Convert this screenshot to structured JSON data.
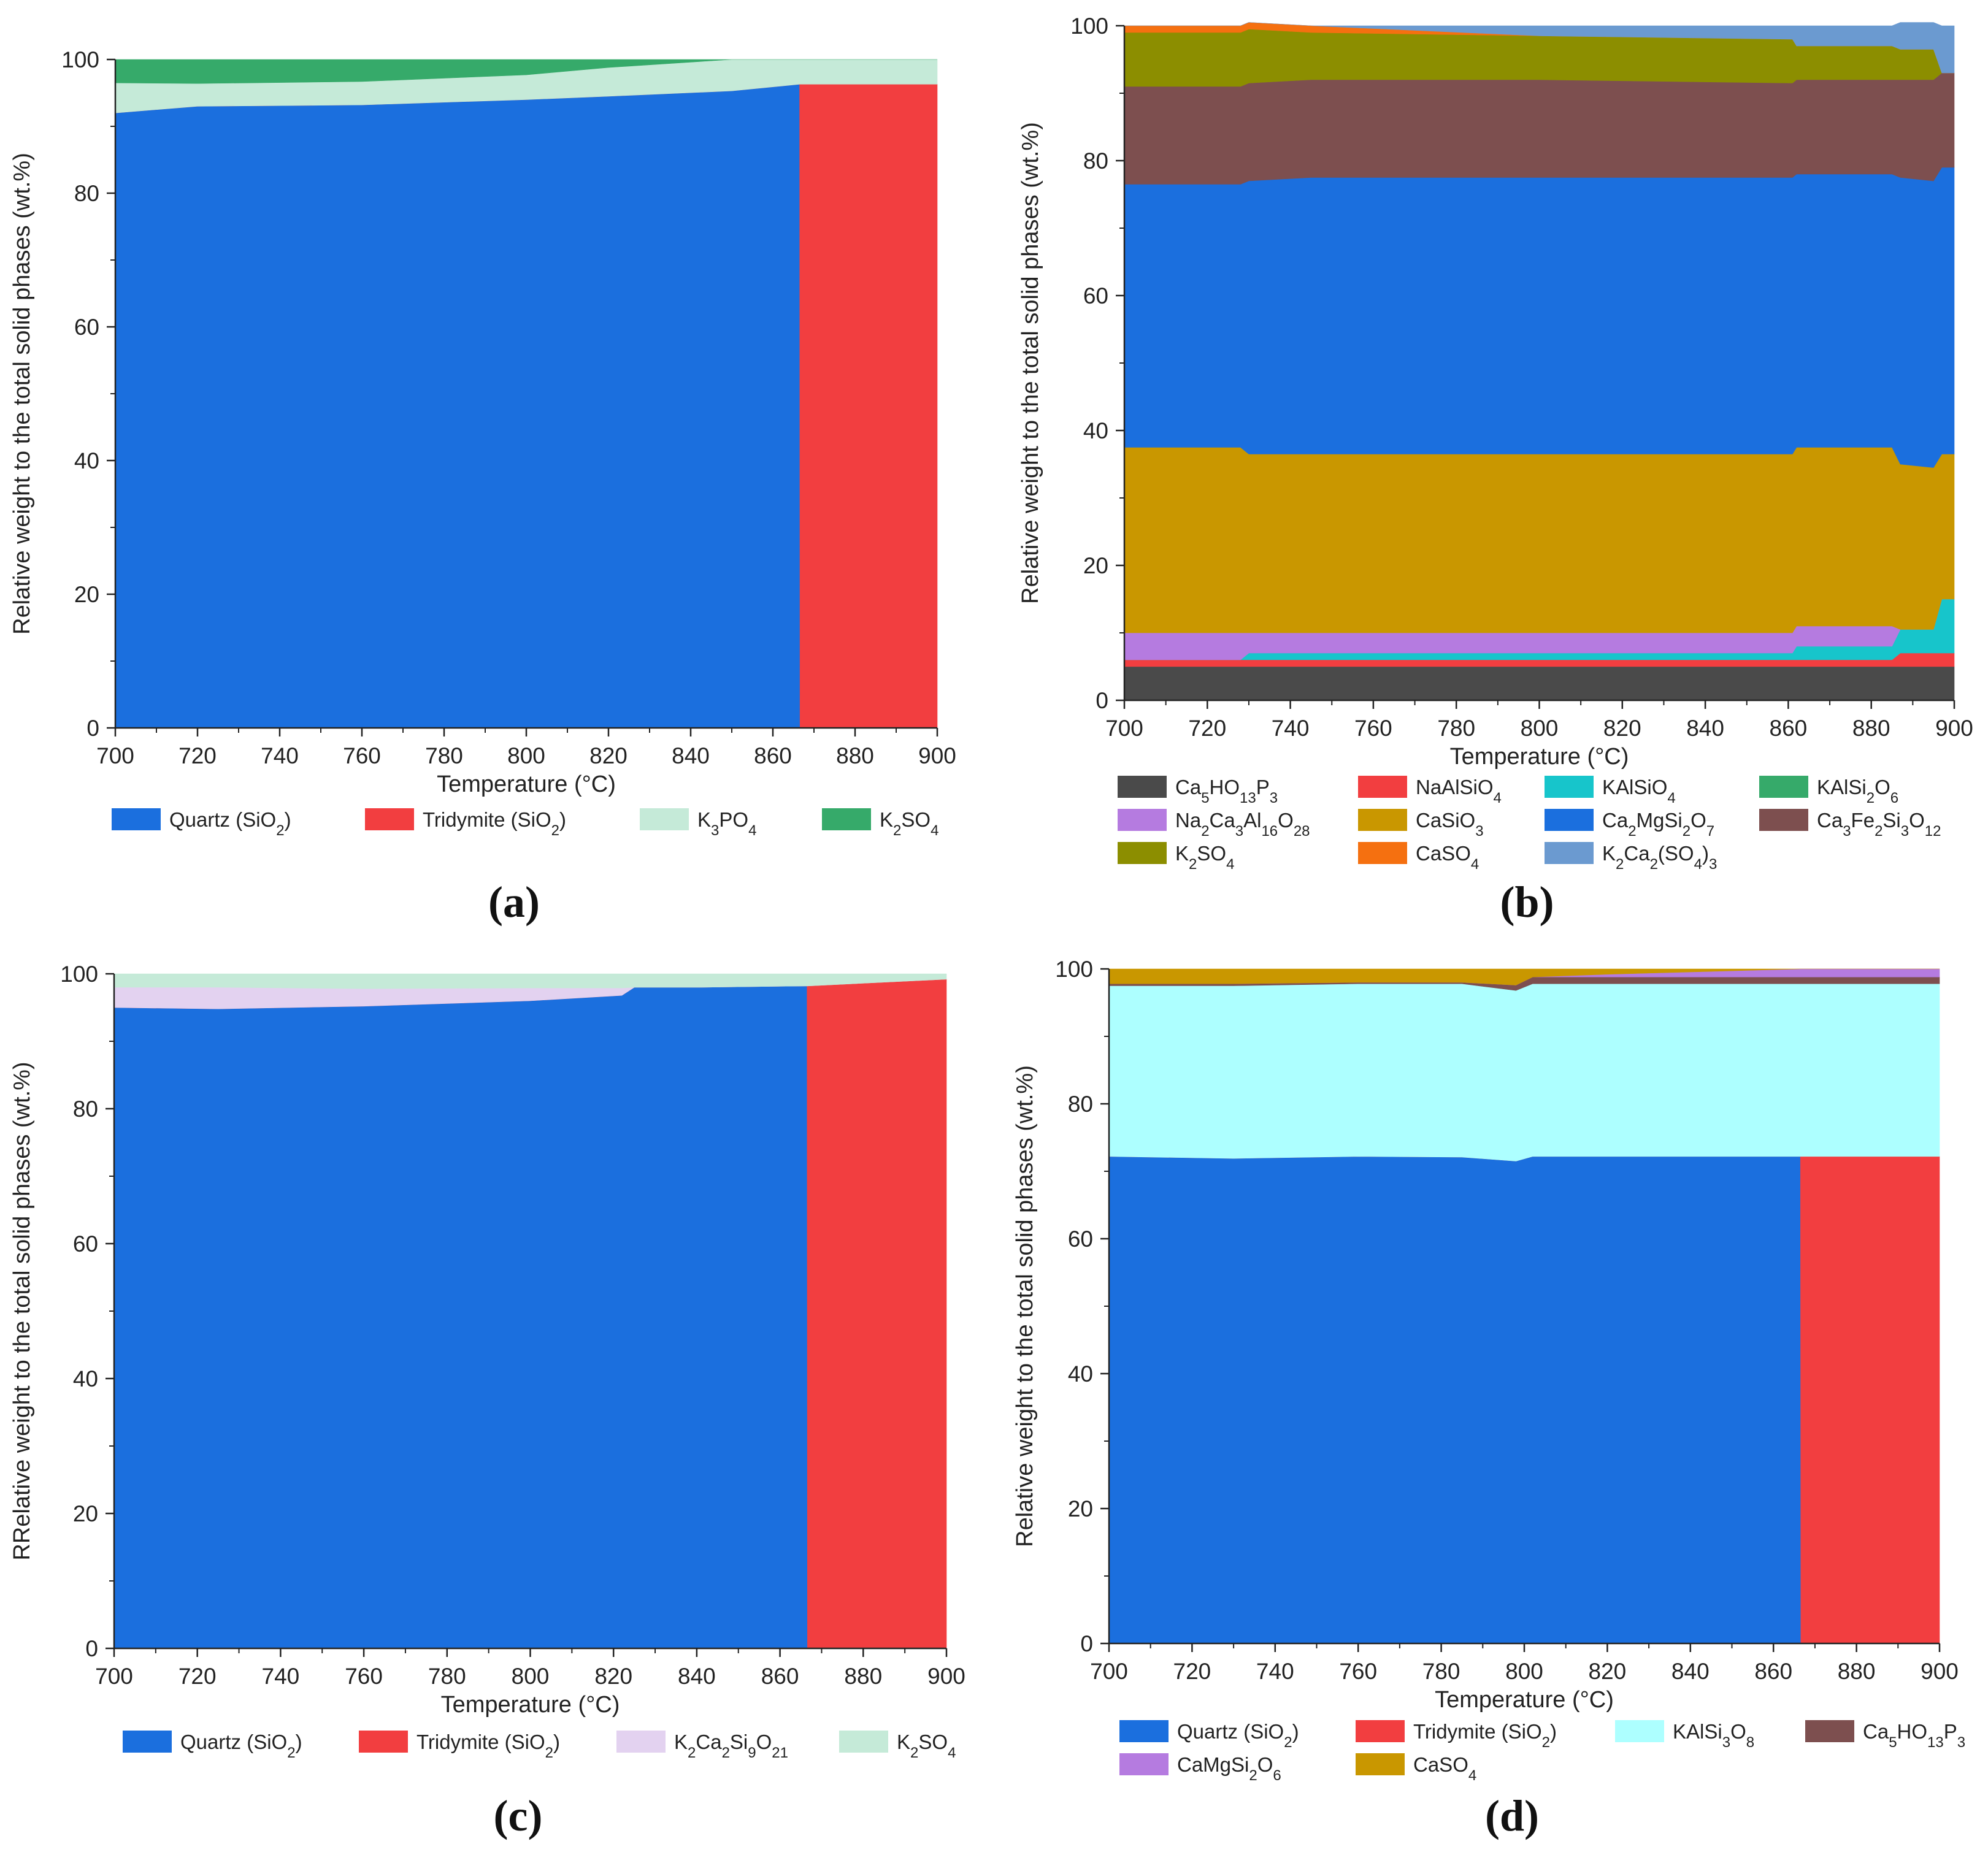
{
  "chart_data": [
    {
      "type": "area",
      "panel_label": "(a)",
      "xlabel": "Temperature (°C)",
      "ylabel": "Relative weight to the total solid phases (wt.%)",
      "xlim": [
        700,
        900
      ],
      "ylim": [
        0,
        100
      ],
      "x_ticks": [
        "700",
        "720",
        "740",
        "760",
        "780",
        "800",
        "820",
        "840",
        "860",
        "880",
        "900"
      ],
      "y_ticks": [
        "0",
        "20",
        "40",
        "60",
        "80",
        "100"
      ],
      "x": [
        700,
        720,
        760,
        800,
        820,
        850,
        866.5,
        866.6,
        900
      ],
      "series": [
        {
          "name": "Quartz (SiO2)",
          "legend_html": "Quartz (SiO<tspan baseline-shift='sub' font-size='24'>2</tspan>)",
          "color": "#1B6FDE",
          "values": [
            92,
            93,
            93.2,
            94,
            94.5,
            95.3,
            96.3,
            0,
            0
          ]
        },
        {
          "name": "Tridymite (SiO2)",
          "legend_html": "Tridymite (SiO<tspan baseline-shift='sub' font-size='24'>2</tspan>)",
          "color": "#F23E40",
          "values": [
            0,
            0,
            0,
            0,
            0,
            0,
            0,
            96.3,
            96.3
          ]
        },
        {
          "name": "K3PO4",
          "legend_html": "K<tspan baseline-shift='sub' font-size='24'>3</tspan>PO<tspan baseline-shift='sub' font-size='24'>4</tspan>",
          "color": "#C5EAD8",
          "values": [
            4.5,
            3.4,
            3.5,
            3.7,
            4.3,
            4.7,
            3.7,
            3.7,
            3.7
          ]
        },
        {
          "name": "K2SO4",
          "legend_html": "K<tspan baseline-shift='sub' font-size='24'>2</tspan>SO<tspan baseline-shift='sub' font-size='24'>4</tspan>",
          "color": "#36AA6A",
          "values": [
            3.5,
            3.6,
            3.3,
            2.3,
            1.2,
            0,
            0,
            0,
            0
          ]
        }
      ]
    },
    {
      "type": "area",
      "panel_label": "(b)",
      "xlabel": "Temperature (°C)",
      "ylabel": "Relative weight to the total solid phases (wt.%)",
      "xlim": [
        700,
        900
      ],
      "ylim": [
        0,
        100
      ],
      "x_ticks": [
        "700",
        "720",
        "740",
        "760",
        "780",
        "800",
        "820",
        "840",
        "860",
        "880",
        "900"
      ],
      "y_ticks": [
        "0",
        "20",
        "40",
        "60",
        "80",
        "100"
      ],
      "x": [
        700,
        728,
        730,
        745,
        800,
        861,
        862,
        885,
        887,
        895,
        897,
        900
      ],
      "series": [
        {
          "name": "Ca5HO13P3",
          "legend_html": "Ca<tspan baseline-shift='sub' font-size='24'>5</tspan>HO<tspan baseline-shift='sub' font-size='24'>13</tspan>P<tspan baseline-shift='sub' font-size='24'>3</tspan>",
          "color": "#4A4A4A",
          "values": [
            5,
            5,
            5,
            5,
            5,
            5,
            5,
            5,
            5,
            5,
            5,
            5
          ]
        },
        {
          "name": "NaAlSiO4",
          "legend_html": "NaAlSiO<tspan baseline-shift='sub' font-size='24'>4</tspan>",
          "color": "#F23E40",
          "values": [
            1,
            1,
            1,
            1,
            1,
            1,
            1,
            1,
            2,
            2,
            2,
            2
          ]
        },
        {
          "name": "KAlSiO4",
          "legend_html": "KAlSiO<tspan baseline-shift='sub' font-size='24'>4</tspan>",
          "color": "#17C5CB",
          "values": [
            0,
            0,
            1,
            1,
            1,
            1,
            2,
            2,
            3.5,
            3.5,
            8,
            8
          ]
        },
        {
          "name": "KAlSi2O6",
          "legend_html": "KAlSi<tspan baseline-shift='sub' font-size='24'>2</tspan>O<tspan baseline-shift='sub' font-size='24'>6</tspan>",
          "color": "#36AA6A",
          "values": [
            0,
            0,
            0,
            0,
            0,
            0,
            0,
            0,
            0,
            0,
            0,
            0
          ]
        },
        {
          "name": "Na2Ca3Al16O28",
          "legend_html": "Na<tspan baseline-shift='sub' font-size='24'>2</tspan>Ca<tspan baseline-shift='sub' font-size='24'>3</tspan>Al<tspan baseline-shift='sub' font-size='24'>16</tspan>O<tspan baseline-shift='sub' font-size='24'>28</tspan>",
          "color": "#B57BE0",
          "values": [
            4,
            4,
            3,
            3,
            3,
            3,
            3,
            3,
            0,
            0,
            0,
            0
          ]
        },
        {
          "name": "CaSiO3",
          "legend_html": "CaSiO<tspan baseline-shift='sub' font-size='24'>3</tspan>",
          "color": "#C99700",
          "values": [
            27.5,
            27.5,
            26.5,
            26.5,
            26.5,
            26.5,
            26.5,
            26.5,
            24.5,
            24,
            21.5,
            21.5
          ]
        },
        {
          "name": "Ca2MgSi2O7",
          "legend_html": "Ca<tspan baseline-shift='sub' font-size='24'>2</tspan>MgSi<tspan baseline-shift='sub' font-size='24'>2</tspan>O<tspan baseline-shift='sub' font-size='24'>7</tspan>",
          "color": "#1B6FDE",
          "values": [
            39,
            39,
            40.5,
            41,
            41,
            41,
            40.5,
            40.5,
            42.5,
            42.5,
            42.5,
            42.5
          ]
        },
        {
          "name": "Ca3Fe2Si3O12",
          "legend_html": "Ca<tspan baseline-shift='sub' font-size='24'>3</tspan>Fe<tspan baseline-shift='sub' font-size='24'>2</tspan>Si<tspan baseline-shift='sub' font-size='24'>3</tspan>O<tspan baseline-shift='sub' font-size='24'>12</tspan>",
          "color": "#7D4F4F",
          "values": [
            14.5,
            14.5,
            14.5,
            14.5,
            14.5,
            14,
            14,
            14,
            14.5,
            15,
            14,
            14
          ]
        },
        {
          "name": "K2SO4",
          "legend_html": "K<tspan baseline-shift='sub' font-size='24'>2</tspan>SO<tspan baseline-shift='sub' font-size='24'>4</tspan>",
          "color": "#8C8E00",
          "values": [
            8,
            8,
            8,
            7,
            6.5,
            6.5,
            5,
            5,
            4.5,
            4.5,
            0,
            0
          ]
        },
        {
          "name": "CaSO4",
          "legend_html": "CaSO<tspan baseline-shift='sub' font-size='24'>4</tspan>",
          "color": "#F57010",
          "values": [
            1,
            1,
            1,
            1,
            0,
            0,
            0,
            0,
            0,
            0,
            0,
            0
          ]
        },
        {
          "name": "K2Ca2(SO4)3",
          "legend_html": "K<tspan baseline-shift='sub' font-size='24'>2</tspan>Ca<tspan baseline-shift='sub' font-size='24'>2</tspan>(SO<tspan baseline-shift='sub' font-size='24'>4</tspan>)<tspan baseline-shift='sub' font-size='24'>3</tspan>",
          "color": "#6B9AD0",
          "values": [
            0,
            0,
            0,
            0,
            1.5,
            2,
            3,
            3,
            4,
            4,
            7,
            7
          ]
        }
      ]
    },
    {
      "type": "area",
      "panel_label": "(c)",
      "xlabel": "Temperature (°C)",
      "ylabel": "RRelative weight to the total solid phases (wt.%)",
      "xlim": [
        700,
        900
      ],
      "ylim": [
        0,
        100
      ],
      "x_ticks": [
        "700",
        "720",
        "740",
        "760",
        "780",
        "800",
        "820",
        "840",
        "860",
        "880",
        "900"
      ],
      "y_ticks": [
        "0",
        "20",
        "40",
        "60",
        "80",
        "100"
      ],
      "x": [
        700,
        725,
        760,
        800,
        822,
        825,
        840,
        866.5,
        866.6,
        900
      ],
      "series": [
        {
          "name": "Quartz (SiO2)",
          "legend_html": "Quartz (SiO<tspan baseline-shift='sub' font-size='24'>2</tspan>)",
          "color": "#1B6FDE",
          "values": [
            95,
            94.8,
            95.2,
            96,
            96.8,
            98,
            98,
            98.2,
            0,
            0
          ]
        },
        {
          "name": "Tridymite (SiO2)",
          "legend_html": "Tridymite (SiO<tspan baseline-shift='sub' font-size='24'>2</tspan>)",
          "color": "#F23E40",
          "values": [
            0,
            0,
            0,
            0,
            0,
            0,
            0,
            0,
            98.2,
            99.2
          ]
        },
        {
          "name": "K2Ca2Si9O21",
          "legend_html": "K<tspan baseline-shift='sub' font-size='24'>2</tspan>Ca<tspan baseline-shift='sub' font-size='24'>2</tspan>Si<tspan baseline-shift='sub' font-size='24'>9</tspan>O<tspan baseline-shift='sub' font-size='24'>21</tspan>",
          "color": "#E3D2F0",
          "values": [
            3,
            3.2,
            2.6,
            1.9,
            1.1,
            0,
            0,
            0,
            0,
            0
          ]
        },
        {
          "name": "K2SO4",
          "legend_html": "K<tspan baseline-shift='sub' font-size='24'>2</tspan>SO<tspan baseline-shift='sub' font-size='24'>4</tspan>",
          "color": "#C5EAD8",
          "values": [
            2,
            2,
            2.2,
            2.1,
            2.1,
            2,
            2,
            1.8,
            1.8,
            0.8
          ]
        }
      ]
    },
    {
      "type": "area",
      "panel_label": "(d)",
      "xlabel": "Temperature (°C)",
      "ylabel": "Relative weight to the total solid phases (wt.%)",
      "xlim": [
        700,
        900
      ],
      "ylim": [
        0,
        100
      ],
      "x_ticks": [
        "700",
        "720",
        "740",
        "760",
        "780",
        "800",
        "820",
        "840",
        "860",
        "880",
        "900"
      ],
      "y_ticks": [
        "0",
        "20",
        "40",
        "60",
        "80",
        "100"
      ],
      "x": [
        700,
        730,
        760,
        785,
        798,
        802,
        820,
        866.5,
        866.6,
        900
      ],
      "series": [
        {
          "name": "Quartz (SiO2)",
          "legend_html": "Quartz (SiO<tspan baseline-shift='sub' font-size='24'>2</tspan>)",
          "color": "#1B6FDE",
          "values": [
            72.2,
            71.9,
            72.2,
            72.1,
            71.5,
            72.2,
            72.2,
            72.2,
            0,
            0
          ]
        },
        {
          "name": "Tridymite (SiO2)",
          "legend_html": "Tridymite (SiO<tspan baseline-shift='sub' font-size='24'>2</tspan>)",
          "color": "#F23E40",
          "values": [
            0,
            0,
            0,
            0,
            0,
            0,
            0,
            0,
            72.2,
            72.2
          ]
        },
        {
          "name": "KAlSi3O8",
          "legend_html": "KAlSi<tspan baseline-shift='sub' font-size='24'>3</tspan>O<tspan baseline-shift='sub' font-size='24'>8</tspan>",
          "color": "#ADFFFF",
          "values": [
            25.3,
            25.6,
            25.6,
            25.7,
            25.3,
            25.6,
            25.6,
            25.6,
            25.6,
            25.6
          ]
        },
        {
          "name": "Ca5HO13P3",
          "legend_html": "Ca<tspan baseline-shift='sub' font-size='24'>5</tspan>HO<tspan baseline-shift='sub' font-size='24'>13</tspan>P<tspan baseline-shift='sub' font-size='24'>3</tspan>",
          "color": "#7D4F4F",
          "values": [
            0.3,
            0.3,
            0.2,
            0.2,
            0.8,
            1,
            1,
            1,
            1,
            1
          ]
        },
        {
          "name": "CaMgSi2O6",
          "legend_html": "CaMgSi<tspan baseline-shift='sub' font-size='24'>2</tspan>O<tspan baseline-shift='sub' font-size='24'>6</tspan>",
          "color": "#B57BE0",
          "values": [
            0,
            0,
            0,
            0,
            0,
            0,
            0.4,
            1.2,
            1.2,
            1.2
          ]
        },
        {
          "name": "CaSO4",
          "legend_html": "CaSO<tspan baseline-shift='sub' font-size='24'>4</tspan>",
          "color": "#C99700",
          "values": [
            2.2,
            2.2,
            2,
            2,
            2.4,
            1.2,
            0.8,
            0,
            0,
            0
          ]
        }
      ]
    }
  ]
}
